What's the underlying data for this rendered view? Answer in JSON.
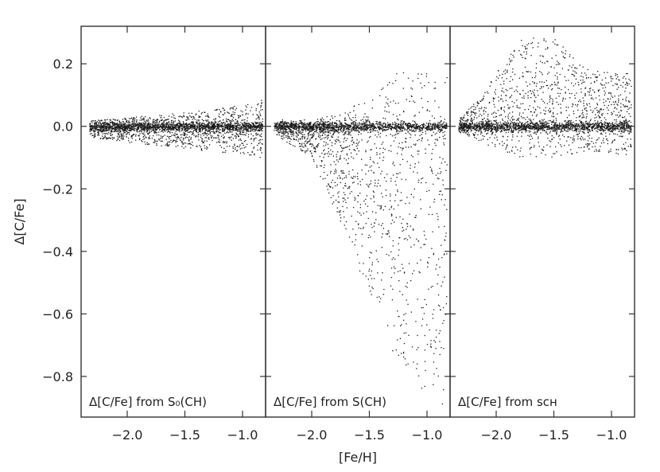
{
  "chart_data": {
    "type": "scatter",
    "layout": "three panels side by side sharing a y axis",
    "ylabel": "Δ[C/Fe]",
    "xlabel": "[Fe/H]",
    "xlim": [
      -2.4,
      -0.8
    ],
    "ylim": [
      -0.93,
      0.32
    ],
    "x_ticks": [
      -2.0,
      -1.5,
      -1.0
    ],
    "x_tick_labels": [
      "−2.0",
      "−1.5",
      "−1.0"
    ],
    "y_ticks": [
      0.2,
      0.0,
      -0.2,
      -0.4,
      -0.6,
      -0.8
    ],
    "y_tick_labels": [
      "0.2",
      "0.0",
      "−0.2",
      "−0.4",
      "−0.6",
      "−0.8"
    ],
    "x_data_range": [
      -2.33,
      -0.83
    ],
    "grid": false,
    "panels": [
      {
        "id": "s0",
        "label": "Δ[C/Fe] from S₀(CH)",
        "envelope": [
          {
            "x": -2.3,
            "low": -0.035,
            "high": 0.02
          },
          {
            "x": -2.0,
            "low": -0.05,
            "high": 0.03
          },
          {
            "x": -1.5,
            "low": -0.07,
            "high": 0.045
          },
          {
            "x": -1.0,
            "low": -0.09,
            "high": 0.07
          },
          {
            "x": -0.85,
            "low": -0.1,
            "high": 0.085
          }
        ]
      },
      {
        "id": "s",
        "label": "Δ[C/Fe] from S(CH)",
        "envelope": [
          {
            "x": -2.3,
            "low": -0.03,
            "high": 0.02
          },
          {
            "x": -2.0,
            "low": -0.1,
            "high": 0.02
          },
          {
            "x": -1.7,
            "low": -0.35,
            "high": 0.05
          },
          {
            "x": -1.5,
            "low": -0.55,
            "high": 0.1
          },
          {
            "x": -1.3,
            "low": -0.72,
            "high": 0.17
          },
          {
            "x": -1.1,
            "low": -0.82,
            "high": 0.18
          },
          {
            "x": -0.85,
            "low": -0.9,
            "high": 0.16
          }
        ]
      },
      {
        "id": "sch",
        "label": "Δ[C/Fe] from sᴄʜ",
        "envelope": [
          {
            "x": -2.3,
            "low": -0.02,
            "high": 0.03
          },
          {
            "x": -2.1,
            "low": -0.06,
            "high": 0.12
          },
          {
            "x": -1.8,
            "low": -0.1,
            "high": 0.28
          },
          {
            "x": -1.5,
            "low": -0.1,
            "high": 0.29
          },
          {
            "x": -1.2,
            "low": -0.08,
            "high": 0.18
          },
          {
            "x": -0.85,
            "low": -0.09,
            "high": 0.17
          }
        ]
      }
    ]
  }
}
